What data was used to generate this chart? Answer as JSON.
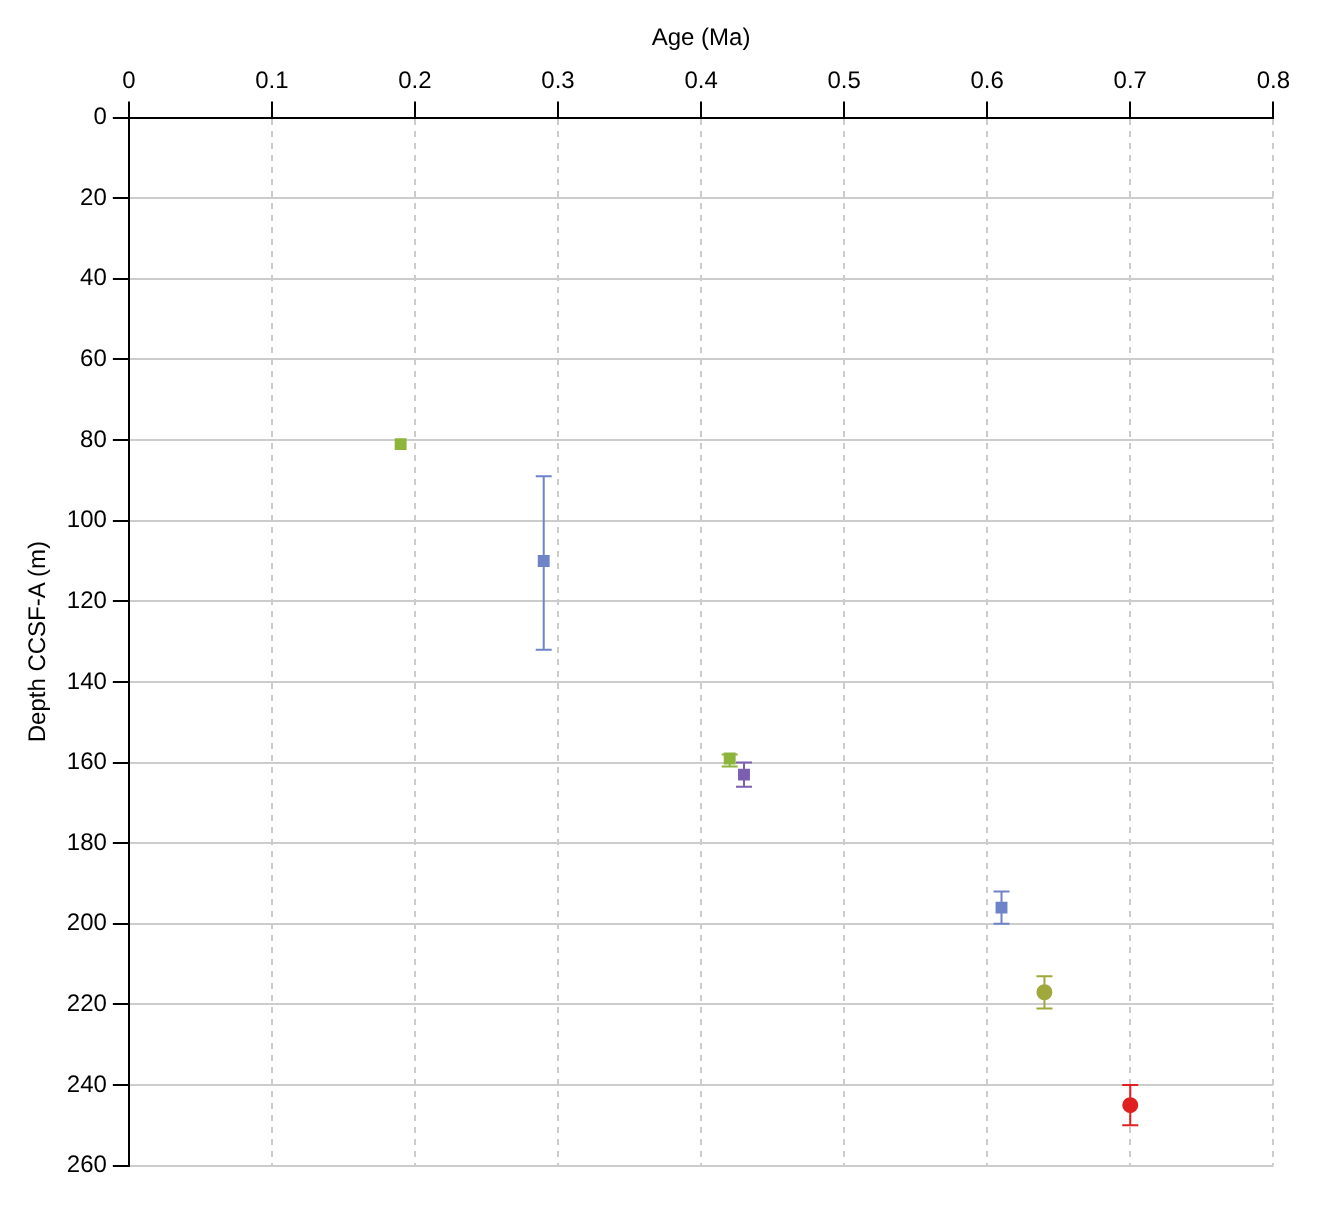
{
  "chart_data": {
    "type": "scatter",
    "xlabel": "Age (Ma)",
    "ylabel": "Depth CCSF-A (m)",
    "xlim": [
      0,
      0.8
    ],
    "xticks": [
      0,
      0.1,
      0.2,
      0.3,
      0.4,
      0.5,
      0.6,
      0.7,
      0.8
    ],
    "ylim": [
      260,
      0
    ],
    "yticks": [
      0,
      20,
      40,
      60,
      80,
      100,
      120,
      140,
      160,
      180,
      200,
      220,
      240,
      260
    ],
    "grid": true,
    "series": [
      {
        "color": "#8db53c",
        "marker": "square",
        "x": [
          0.19,
          0.42
        ],
        "values": [
          81,
          159
        ],
        "errors": [
          null,
          [
            158,
            161
          ]
        ]
      },
      {
        "color": "#7b5fb0",
        "marker": "square",
        "x": [
          0.43
        ],
        "values": [
          163
        ],
        "errors": [
          [
            160,
            166
          ]
        ]
      },
      {
        "color": "#6f83c8",
        "marker": "square",
        "x": [
          0.29,
          0.61
        ],
        "values": [
          110,
          196
        ],
        "errors": [
          [
            89,
            132
          ],
          [
            192,
            200
          ]
        ]
      },
      {
        "color": "#a0a83c",
        "marker": "circle",
        "x": [
          0.64
        ],
        "values": [
          217
        ],
        "errors": [
          [
            213,
            221
          ]
        ]
      },
      {
        "color": "#e02020",
        "marker": "circle",
        "x": [
          0.7
        ],
        "values": [
          245
        ],
        "errors": [
          [
            240,
            250
          ]
        ]
      }
    ]
  }
}
